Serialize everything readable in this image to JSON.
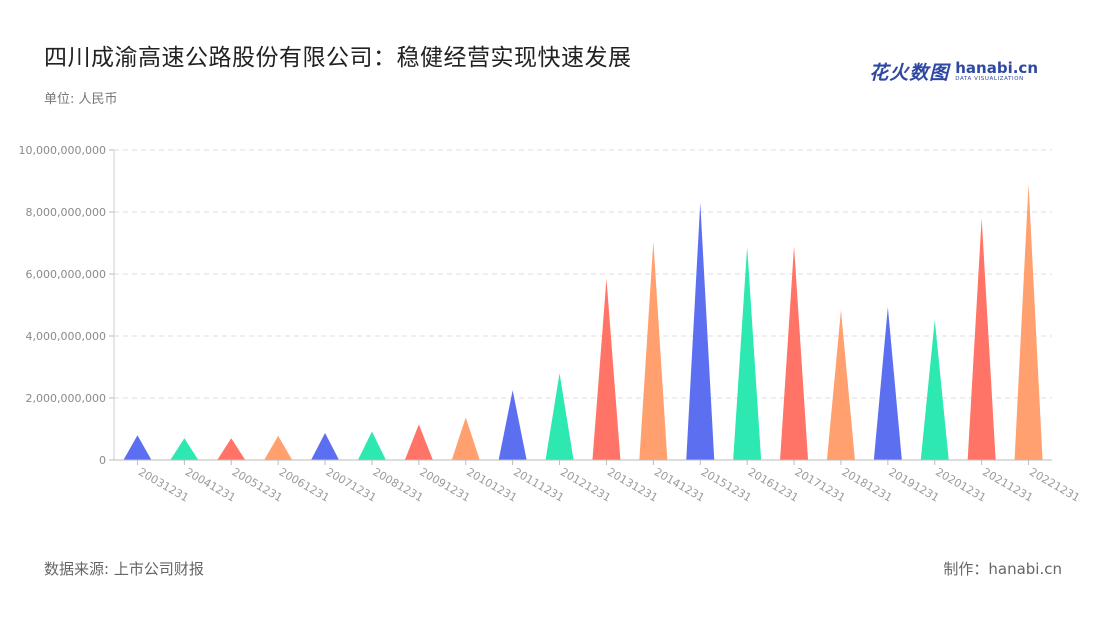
{
  "header": {
    "title": "四川成渝高速公路股份有限公司：稳健经营实现快速发展",
    "unit": "单位: 人民币"
  },
  "logo": {
    "cn": "花火数图",
    "en": "hanabi.cn",
    "sub": "DATA VISUALIZATION"
  },
  "footer": {
    "source": "数据来源: 上市公司财报",
    "credit": "制作：hanabi.cn"
  },
  "colors": [
    "#5b6ff0",
    "#2de8b0",
    "#ff7466",
    "#ffa06e"
  ],
  "chart_data": {
    "type": "bar",
    "categories": [
      "20031231",
      "20041231",
      "20051231",
      "20061231",
      "20071231",
      "20081231",
      "20091231",
      "20101231",
      "20111231",
      "20121231",
      "20131231",
      "20141231",
      "20151231",
      "20161231",
      "20171231",
      "20181231",
      "20191231",
      "20201231",
      "20211231",
      "20221231"
    ],
    "values": [
      800000000,
      700000000,
      700000000,
      780000000,
      870000000,
      920000000,
      1150000000,
      1370000000,
      2250000000,
      2800000000,
      5850000000,
      7050000000,
      8300000000,
      6880000000,
      6900000000,
      4830000000,
      4930000000,
      4520000000,
      7800000000,
      8900000000
    ],
    "ylim": [
      0,
      10000000000
    ],
    "yticks": [
      0,
      2000000000,
      4000000000,
      6000000000,
      8000000000,
      10000000000
    ],
    "ytick_labels": [
      "0",
      "2,000,000,000",
      "4,000,000,000",
      "6,000,000,000",
      "8,000,000,000",
      "10,000,000,000"
    ],
    "grid": true,
    "xlabel": "",
    "ylabel": ""
  }
}
